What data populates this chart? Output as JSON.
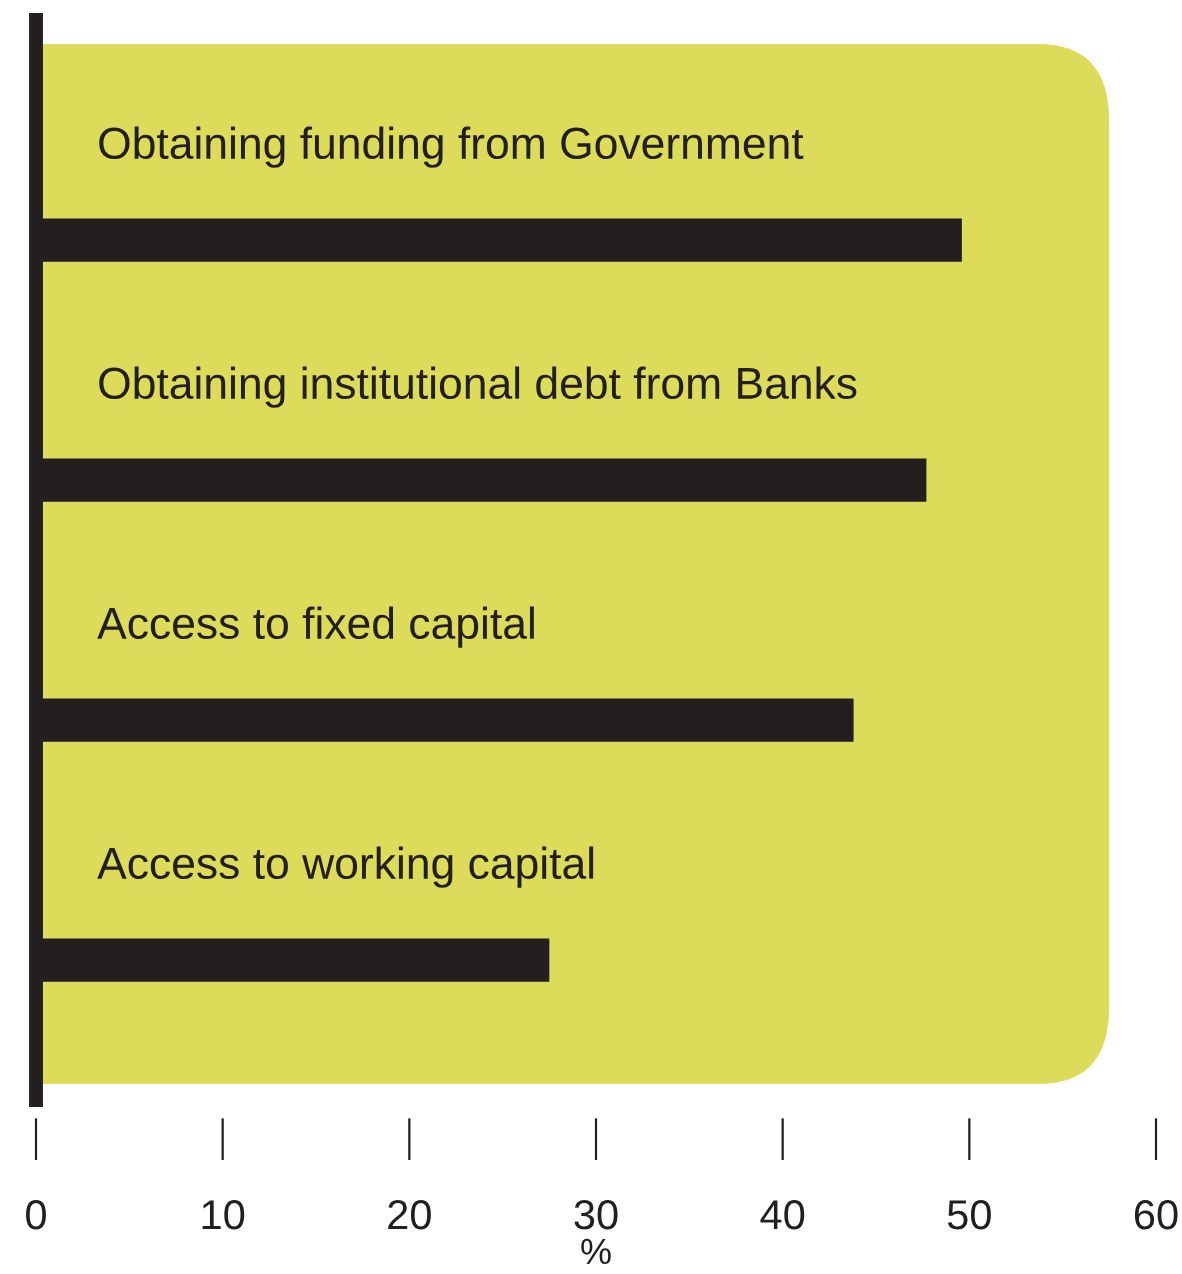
{
  "chart_data": {
    "type": "bar",
    "orientation": "horizontal",
    "xlabel": "%",
    "categories": [
      "Obtaining funding from Government",
      "Obtaining institutional debt from Banks",
      "Access to fixed capital",
      "Access to working capital"
    ],
    "values": [
      49.6,
      47.7,
      43.8,
      27.5
    ],
    "color": "#231f20",
    "xlim": [
      0,
      60
    ],
    "xticks": [
      0,
      10,
      20,
      30,
      40,
      50,
      60
    ],
    "grid": false,
    "legend": false
  }
}
